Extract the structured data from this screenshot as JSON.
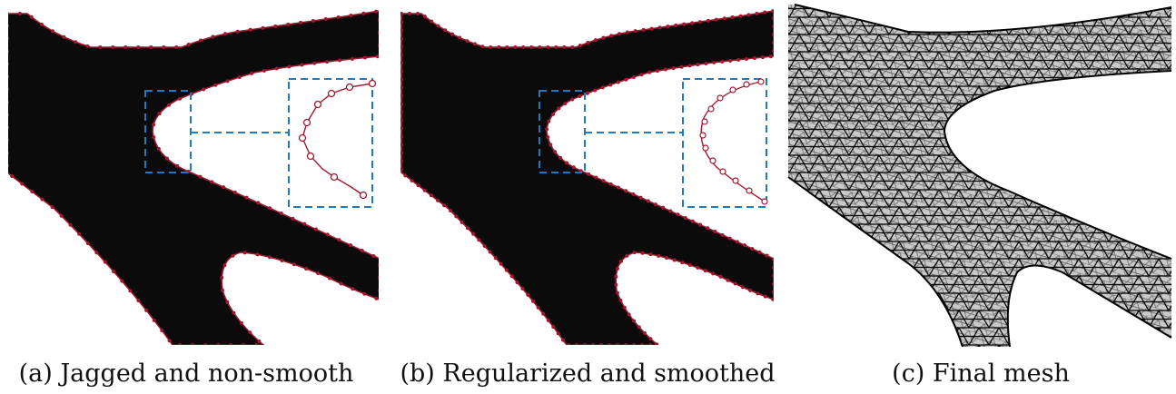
{
  "panels": [
    {
      "caption": "(a) Jagged and non-smooth"
    },
    {
      "caption": "(b) Regularized and smoothed"
    },
    {
      "caption": "(c) Final mesh"
    }
  ]
}
